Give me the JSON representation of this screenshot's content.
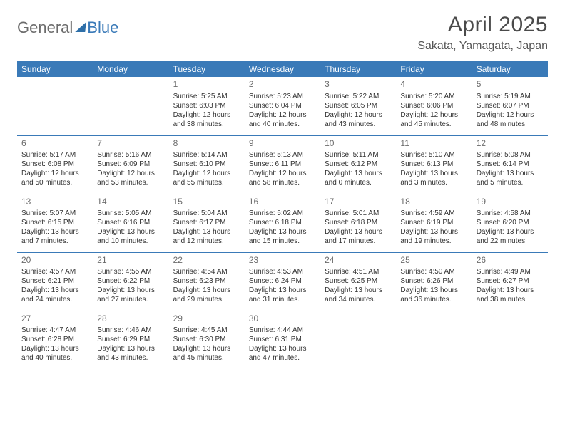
{
  "brand": {
    "part_a": "General",
    "part_b": "Blue"
  },
  "title": "April 2025",
  "location": "Sakata, Yamagata, Japan",
  "colors": {
    "header_bg": "#3a7ab8",
    "header_text": "#ffffff",
    "row_border": "#3a7ab8",
    "daynum": "#6b6b6b",
    "body_text": "#333333",
    "month_title": "#4a4a4a"
  },
  "weekdays": [
    "Sunday",
    "Monday",
    "Tuesday",
    "Wednesday",
    "Thursday",
    "Friday",
    "Saturday"
  ],
  "start_weekday_index": 2,
  "days": [
    {
      "n": 1,
      "sunrise": "5:25 AM",
      "sunset": "6:03 PM",
      "daylight": "12 hours and 38 minutes."
    },
    {
      "n": 2,
      "sunrise": "5:23 AM",
      "sunset": "6:04 PM",
      "daylight": "12 hours and 40 minutes."
    },
    {
      "n": 3,
      "sunrise": "5:22 AM",
      "sunset": "6:05 PM",
      "daylight": "12 hours and 43 minutes."
    },
    {
      "n": 4,
      "sunrise": "5:20 AM",
      "sunset": "6:06 PM",
      "daylight": "12 hours and 45 minutes."
    },
    {
      "n": 5,
      "sunrise": "5:19 AM",
      "sunset": "6:07 PM",
      "daylight": "12 hours and 48 minutes."
    },
    {
      "n": 6,
      "sunrise": "5:17 AM",
      "sunset": "6:08 PM",
      "daylight": "12 hours and 50 minutes."
    },
    {
      "n": 7,
      "sunrise": "5:16 AM",
      "sunset": "6:09 PM",
      "daylight": "12 hours and 53 minutes."
    },
    {
      "n": 8,
      "sunrise": "5:14 AM",
      "sunset": "6:10 PM",
      "daylight": "12 hours and 55 minutes."
    },
    {
      "n": 9,
      "sunrise": "5:13 AM",
      "sunset": "6:11 PM",
      "daylight": "12 hours and 58 minutes."
    },
    {
      "n": 10,
      "sunrise": "5:11 AM",
      "sunset": "6:12 PM",
      "daylight": "13 hours and 0 minutes."
    },
    {
      "n": 11,
      "sunrise": "5:10 AM",
      "sunset": "6:13 PM",
      "daylight": "13 hours and 3 minutes."
    },
    {
      "n": 12,
      "sunrise": "5:08 AM",
      "sunset": "6:14 PM",
      "daylight": "13 hours and 5 minutes."
    },
    {
      "n": 13,
      "sunrise": "5:07 AM",
      "sunset": "6:15 PM",
      "daylight": "13 hours and 7 minutes."
    },
    {
      "n": 14,
      "sunrise": "5:05 AM",
      "sunset": "6:16 PM",
      "daylight": "13 hours and 10 minutes."
    },
    {
      "n": 15,
      "sunrise": "5:04 AM",
      "sunset": "6:17 PM",
      "daylight": "13 hours and 12 minutes."
    },
    {
      "n": 16,
      "sunrise": "5:02 AM",
      "sunset": "6:18 PM",
      "daylight": "13 hours and 15 minutes."
    },
    {
      "n": 17,
      "sunrise": "5:01 AM",
      "sunset": "6:18 PM",
      "daylight": "13 hours and 17 minutes."
    },
    {
      "n": 18,
      "sunrise": "4:59 AM",
      "sunset": "6:19 PM",
      "daylight": "13 hours and 19 minutes."
    },
    {
      "n": 19,
      "sunrise": "4:58 AM",
      "sunset": "6:20 PM",
      "daylight": "13 hours and 22 minutes."
    },
    {
      "n": 20,
      "sunrise": "4:57 AM",
      "sunset": "6:21 PM",
      "daylight": "13 hours and 24 minutes."
    },
    {
      "n": 21,
      "sunrise": "4:55 AM",
      "sunset": "6:22 PM",
      "daylight": "13 hours and 27 minutes."
    },
    {
      "n": 22,
      "sunrise": "4:54 AM",
      "sunset": "6:23 PM",
      "daylight": "13 hours and 29 minutes."
    },
    {
      "n": 23,
      "sunrise": "4:53 AM",
      "sunset": "6:24 PM",
      "daylight": "13 hours and 31 minutes."
    },
    {
      "n": 24,
      "sunrise": "4:51 AM",
      "sunset": "6:25 PM",
      "daylight": "13 hours and 34 minutes."
    },
    {
      "n": 25,
      "sunrise": "4:50 AM",
      "sunset": "6:26 PM",
      "daylight": "13 hours and 36 minutes."
    },
    {
      "n": 26,
      "sunrise": "4:49 AM",
      "sunset": "6:27 PM",
      "daylight": "13 hours and 38 minutes."
    },
    {
      "n": 27,
      "sunrise": "4:47 AM",
      "sunset": "6:28 PM",
      "daylight": "13 hours and 40 minutes."
    },
    {
      "n": 28,
      "sunrise": "4:46 AM",
      "sunset": "6:29 PM",
      "daylight": "13 hours and 43 minutes."
    },
    {
      "n": 29,
      "sunrise": "4:45 AM",
      "sunset": "6:30 PM",
      "daylight": "13 hours and 45 minutes."
    },
    {
      "n": 30,
      "sunrise": "4:44 AM",
      "sunset": "6:31 PM",
      "daylight": "13 hours and 47 minutes."
    }
  ],
  "labels": {
    "sunrise": "Sunrise:",
    "sunset": "Sunset:",
    "daylight": "Daylight:"
  }
}
